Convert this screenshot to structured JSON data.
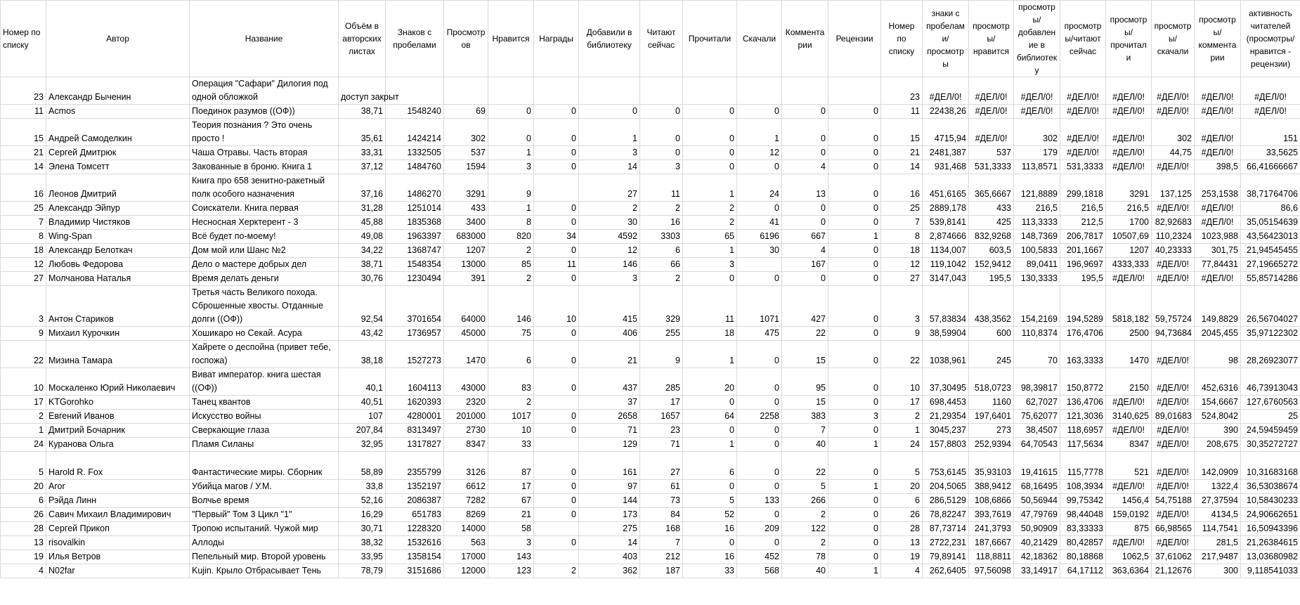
{
  "header": [
    "Номер по списку",
    "Автор",
    "Название",
    "Объём в авторских листах",
    "Знаков с пробелами",
    "Просмотров",
    "Нравится",
    "Награды",
    "Добавили в библиотеку",
    "Читают сейчас",
    "Прочитали",
    "Скачали",
    "Комментарии",
    "Рецензии",
    "Номер по списку",
    "знаки с пробелами/просмотры",
    "просмотры/нравится",
    "просмотры/добавление в библиотеку",
    "просмотры/читают сейчас",
    "просмотры/прочитали",
    "просмотры/скачали",
    "просмотры/комментарии",
    "активность читателей (просмотры/нравится - рецензии)"
  ],
  "rows": [
    [
      "23",
      "Александр Быченин",
      "Операция \"Сафари\" Дилогия под одной обложкой",
      "доступ закрыт",
      null,
      null,
      null,
      null,
      null,
      null,
      null,
      null,
      null,
      null,
      "23",
      "#ДЕЛ/0!",
      "#ДЕЛ/0!",
      "#ДЕЛ/0!",
      "#ДЕЛ/0!",
      "#ДЕЛ/0!",
      "#ДЕЛ/0!",
      "#ДЕЛ/0!",
      "#ДЕЛ/0!"
    ],
    [
      "11",
      "Acmos",
      "Поединок разумов ((ОФ))",
      "38,71",
      "1548240",
      "69",
      "0",
      "0",
      "0",
      "0",
      "0",
      "0",
      "0",
      "0",
      "11",
      "22438,26",
      "#ДЕЛ/0!",
      "#ДЕЛ/0!",
      "#ДЕЛ/0!",
      "#ДЕЛ/0!",
      "#ДЕЛ/0!",
      "#ДЕЛ/0!",
      "#ДЕЛ/0!"
    ],
    [
      "15",
      "Андрей Самоделкин",
      "Теория познания ? Это очень просто !",
      "35,61",
      "1424214",
      "302",
      "0",
      "0",
      "1",
      "0",
      "0",
      "1",
      "0",
      "0",
      "15",
      "4715,94",
      "#ДЕЛ/0!",
      "302",
      "#ДЕЛ/0!",
      "#ДЕЛ/0!",
      "302",
      "#ДЕЛ/0!",
      "151"
    ],
    [
      "21",
      "Сергей Дмитрюк",
      "Чаша Отравы. Часть вторая",
      "33,31",
      "1332505",
      "537",
      "1",
      "0",
      "3",
      "0",
      "0",
      "12",
      "0",
      "0",
      "21",
      "2481,387",
      "537",
      "179",
      "#ДЕЛ/0!",
      "#ДЕЛ/0!",
      "44,75",
      "#ДЕЛ/0!",
      "33,5625"
    ],
    [
      "14",
      "Элена Томсетт",
      "Закованные в броню. Книга 1",
      "37,12",
      "1484760",
      "1594",
      "3",
      "0",
      "14",
      "3",
      "0",
      "0",
      "4",
      "0",
      "14",
      "931,468",
      "531,3333",
      "113,8571",
      "531,3333",
      "#ДЕЛ/0!",
      "#ДЕЛ/0!",
      "398,5",
      "66,41666667"
    ],
    [
      "16",
      "Леонов Дмитрий",
      "Книга про 658 зенитно-ракетный полк особого назначения",
      "37,16",
      "1486270",
      "3291",
      "9",
      null,
      "27",
      "11",
      "1",
      "24",
      "13",
      "0",
      "16",
      "451,6165",
      "365,6667",
      "121,8889",
      "299,1818",
      "3291",
      "137,125",
      "253,1538",
      "38,71764706"
    ],
    [
      "25",
      "Александр Эйпур",
      "Соискатели. Книга первая",
      "31,28",
      "1251014",
      "433",
      "1",
      "0",
      "2",
      "2",
      "2",
      "0",
      "0",
      "0",
      "25",
      "2889,178",
      "433",
      "216,5",
      "216,5",
      "216,5",
      "#ДЕЛ/0!",
      "#ДЕЛ/0!",
      "86,6"
    ],
    [
      "7",
      "Владимир Чистяков",
      "Несносная Херктерент - 3",
      "45,88",
      "1835368",
      "3400",
      "8",
      "0",
      "30",
      "16",
      "2",
      "41",
      "0",
      "0",
      "7",
      "539,8141",
      "425",
      "113,3333",
      "212,5",
      "1700",
      "82,92683",
      "#ДЕЛ/0!",
      "35,05154639"
    ],
    [
      "8",
      "Wing-Span",
      "Всё будет по-моему!",
      "49,08",
      "1963397",
      "683000",
      "820",
      "34",
      "4592",
      "3303",
      "65",
      "6196",
      "667",
      "1",
      "8",
      "2,874666",
      "832,9268",
      "148,7369",
      "206,7817",
      "10507,69",
      "110,2324",
      "1023,988",
      "43,56423013"
    ],
    [
      "18",
      "Александр Белоткач",
      "Дом мой или Шанс №2",
      "34,22",
      "1368747",
      "1207",
      "2",
      "0",
      "12",
      "6",
      "1",
      "30",
      "4",
      "0",
      "18",
      "1134,007",
      "603,5",
      "100,5833",
      "201,1667",
      "1207",
      "40,23333",
      "301,75",
      "21,94545455"
    ],
    [
      "12",
      "Любовь Федорова",
      "Дело о мастере добрых дел",
      "38,71",
      "1548354",
      "13000",
      "85",
      "11",
      "146",
      "66",
      "3",
      null,
      "167",
      "0",
      "12",
      "119,1042",
      "152,9412",
      "89,0411",
      "196,9697",
      "4333,333",
      "#ДЕЛ/0!",
      "77,84431",
      "27,19665272"
    ],
    [
      "27",
      "Молчанова Наталья",
      "Время делать деньги",
      "30,76",
      "1230494",
      "391",
      "2",
      "0",
      "3",
      "2",
      "0",
      "0",
      "0",
      "0",
      "27",
      "3147,043",
      "195,5",
      "130,3333",
      "195,5",
      "#ДЕЛ/0!",
      "#ДЕЛ/0!",
      "#ДЕЛ/0!",
      "55,85714286"
    ],
    [
      "3",
      "Антон Стариков",
      "Третья часть Великого похода. Сброшенные хвосты. Отданные долги ((ОФ))",
      "92,54",
      "3701654",
      "64000",
      "146",
      "10",
      "415",
      "329",
      "11",
      "1071",
      "427",
      "0",
      "3",
      "57,83834",
      "438,3562",
      "154,2169",
      "194,5289",
      "5818,182",
      "59,75724",
      "149,8829",
      "26,56704027"
    ],
    [
      "9",
      "Михаил Курочкин",
      "Хошикаро но Секай. Асура",
      "43,42",
      "1736957",
      "45000",
      "75",
      "0",
      "406",
      "255",
      "18",
      "475",
      "22",
      "0",
      "9",
      "38,59904",
      "600",
      "110,8374",
      "176,4706",
      "2500",
      "94,73684",
      "2045,455",
      "35,97122302"
    ],
    [
      "22",
      "Мизина Тамара",
      "Хайрете о деспойна (привет тебе, госпожа)",
      "38,18",
      "1527273",
      "1470",
      "6",
      "0",
      "21",
      "9",
      "1",
      "0",
      "15",
      "0",
      "22",
      "1038,961",
      "245",
      "70",
      "163,3333",
      "1470",
      "#ДЕЛ/0!",
      "98",
      "28,26923077"
    ],
    [
      "10",
      "Москаленко Юрий Николаевич",
      "Виват император. книга шестая ((ОФ))",
      "40,1",
      "1604113",
      "43000",
      "83",
      "0",
      "437",
      "285",
      "20",
      "0",
      "95",
      "0",
      "10",
      "37,30495",
      "518,0723",
      "98,39817",
      "150,8772",
      "2150",
      "#ДЕЛ/0!",
      "452,6316",
      "46,73913043"
    ],
    [
      "17",
      "KTGorohko",
      "Танец квантов",
      "40,51",
      "1620393",
      "2320",
      "2",
      null,
      "37",
      "17",
      "0",
      "0",
      "15",
      "0",
      "17",
      "698,4453",
      "1160",
      "62,7027",
      "136,4706",
      "#ДЕЛ/0!",
      "#ДЕЛ/0!",
      "154,6667",
      "127,6760563"
    ],
    [
      "2",
      "Евгений Иванов",
      "Искусство войны",
      "107",
      "4280001",
      "201000",
      "1017",
      "0",
      "2658",
      "1657",
      "64",
      "2258",
      "383",
      "3",
      "2",
      "21,29354",
      "197,6401",
      "75,62077",
      "121,3036",
      "3140,625",
      "89,01683",
      "524,8042",
      "25"
    ],
    [
      "1",
      "Дмитрий Бочарник",
      "Сверкающие глаза",
      "207,84",
      "8313497",
      "2730",
      "10",
      "0",
      "71",
      "23",
      "0",
      "0",
      "7",
      "0",
      "1",
      "3045,237",
      "273",
      "38,4507",
      "118,6957",
      "#ДЕЛ/0!",
      "#ДЕЛ/0!",
      "390",
      "24,59459459"
    ],
    [
      "24",
      "Куранова Ольга",
      "Пламя Силаны",
      "32,95",
      "1317827",
      "8347",
      "33",
      null,
      "129",
      "71",
      "1",
      "0",
      "40",
      "1",
      "24",
      "157,8803",
      "252,9394",
      "64,70543",
      "117,5634",
      "8347",
      "#ДЕЛ/0!",
      "208,675",
      "30,35272727"
    ],
    [
      "5",
      "Harold R. Fox",
      "Фантастические миры. Сборник",
      "58,89",
      "2355799",
      "3126",
      "87",
      "0",
      "161",
      "27",
      "6",
      "0",
      "22",
      "0",
      "5",
      "753,6145",
      "35,93103",
      "19,41615",
      "115,7778",
      "521",
      "#ДЕЛ/0!",
      "142,0909",
      "10,31683168"
    ],
    [
      "20",
      "Aror",
      "Убийца магов / У.М.",
      "33,8",
      "1352197",
      "6612",
      "17",
      "0",
      "97",
      "61",
      "0",
      "0",
      "5",
      "1",
      "20",
      "204,5065",
      "388,9412",
      "68,16495",
      "108,3934",
      "#ДЕЛ/0!",
      "#ДЕЛ/0!",
      "1322,4",
      "36,53038674"
    ],
    [
      "6",
      "Рэйда Линн",
      "Волчье время",
      "52,16",
      "2086387",
      "7282",
      "67",
      "0",
      "144",
      "73",
      "5",
      "133",
      "266",
      "0",
      "6",
      "286,5129",
      "108,6866",
      "50,56944",
      "99,75342",
      "1456,4",
      "54,75188",
      "27,37594",
      "10,58430233"
    ],
    [
      "26",
      "Савич Михаил Владимирович",
      "\"Первый\" Том 3 Цикл \"1\"",
      "16,29",
      "651783",
      "8269",
      "21",
      "0",
      "173",
      "84",
      "52",
      "0",
      "2",
      "0",
      "26",
      "78,82247",
      "393,7619",
      "47,79769",
      "98,44048",
      "159,0192",
      "#ДЕЛ/0!",
      "4134,5",
      "24,90662651"
    ],
    [
      "28",
      "Сергей Прикоп",
      "Тропою испытаний. Чужой мир",
      "30,71",
      "1228320",
      "14000",
      "58",
      null,
      "275",
      "168",
      "16",
      "209",
      "122",
      "0",
      "28",
      "87,73714",
      "241,3793",
      "50,90909",
      "83,33333",
      "875",
      "66,98565",
      "114,7541",
      "16,50943396"
    ],
    [
      "13",
      "risovalkin",
      "Аллоды",
      "38,32",
      "1532616",
      "563",
      "3",
      "0",
      "14",
      "7",
      "0",
      "0",
      "2",
      "0",
      "13",
      "2722,231",
      "187,6667",
      "40,21429",
      "80,42857",
      "#ДЕЛ/0!",
      "#ДЕЛ/0!",
      "281,5",
      "21,26384615"
    ],
    [
      "19",
      "Илья Ветров",
      "Пепельный мир. Второй уровень",
      "33,95",
      "1358154",
      "17000",
      "143",
      null,
      "403",
      "212",
      "16",
      "452",
      "78",
      "0",
      "19",
      "79,89141",
      "118,8811",
      "42,18362",
      "80,18868",
      "1062,5",
      "37,61062",
      "217,9487",
      "13,03680982"
    ],
    [
      "4",
      "N02far",
      "Kujin. Крыло Отбрасывает Тень",
      "78,79",
      "3151686",
      "12000",
      "123",
      "2",
      "362",
      "187",
      "33",
      "568",
      "40",
      "1",
      "4",
      "262,6405",
      "97,56098",
      "33,14917",
      "64,17112",
      "363,6364",
      "21,12676",
      "300",
      "9,118541033"
    ]
  ]
}
